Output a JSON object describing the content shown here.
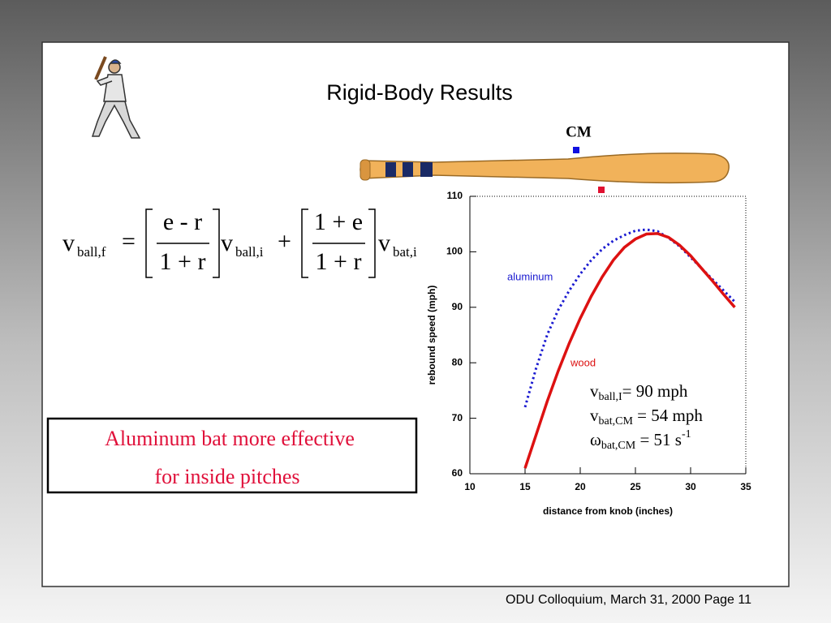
{
  "header": {
    "title": "Rigid-Body Results"
  },
  "footer": {
    "text": "ODU Colloquium, March 31, 2000  Page 11"
  },
  "bat": {
    "cm_label": "CM"
  },
  "formula": {
    "lhs": "v",
    "lhs_sub": "ball,f",
    "equals": "=",
    "frac1_num": "e - r",
    "frac1_den": "1 + r",
    "v1": "v",
    "v1_sub": "ball,i",
    "plus": "+",
    "frac2_num": "1 + e",
    "frac2_den": "1 + r",
    "v2": "v",
    "v2_sub": "bat,i"
  },
  "callout": {
    "lines": [
      "Aluminum bat more effective",
      "for inside pitches"
    ]
  },
  "chart_data": {
    "type": "line",
    "xlabel": "distance from knob (inches)",
    "ylabel": "rebound speed (mph)",
    "x": [
      15,
      16,
      17,
      18,
      19,
      20,
      21,
      22,
      23,
      24,
      25,
      26,
      27,
      28,
      29,
      30,
      31,
      32,
      33,
      34
    ],
    "series": [
      {
        "name": "aluminum",
        "color": "#1a1ad0",
        "dash": true,
        "values": [
          72,
          79,
          85,
          89.5,
          93,
          96,
          98.5,
          100.5,
          102,
          103,
          103.8,
          104,
          103.7,
          102.5,
          101,
          99,
          97,
          95,
          93,
          91
        ]
      },
      {
        "name": "wood",
        "color": "#dd1111",
        "dash": false,
        "values": [
          61,
          67,
          73,
          78.5,
          83.5,
          88,
          92,
          95.5,
          98.5,
          100.8,
          102.3,
          103.2,
          103.3,
          102.6,
          101.2,
          99.3,
          97,
          94.7,
          92.3,
          90
        ]
      }
    ],
    "xlim": [
      10,
      35
    ],
    "xticks": [
      10,
      15,
      20,
      25,
      30,
      35
    ],
    "ylim": [
      60,
      110
    ],
    "yticks": [
      60,
      70,
      80,
      90,
      100,
      110
    ],
    "annotations": [
      {
        "main": "v",
        "sub": "ball,I",
        "rest": "=    90 mph"
      },
      {
        "main": "v",
        "sub": "bat,CM",
        "rest": " = 54 mph"
      },
      {
        "main": "ω",
        "sub": "bat,CM",
        "rest": " = 51 s",
        "sup": "-1"
      }
    ]
  }
}
